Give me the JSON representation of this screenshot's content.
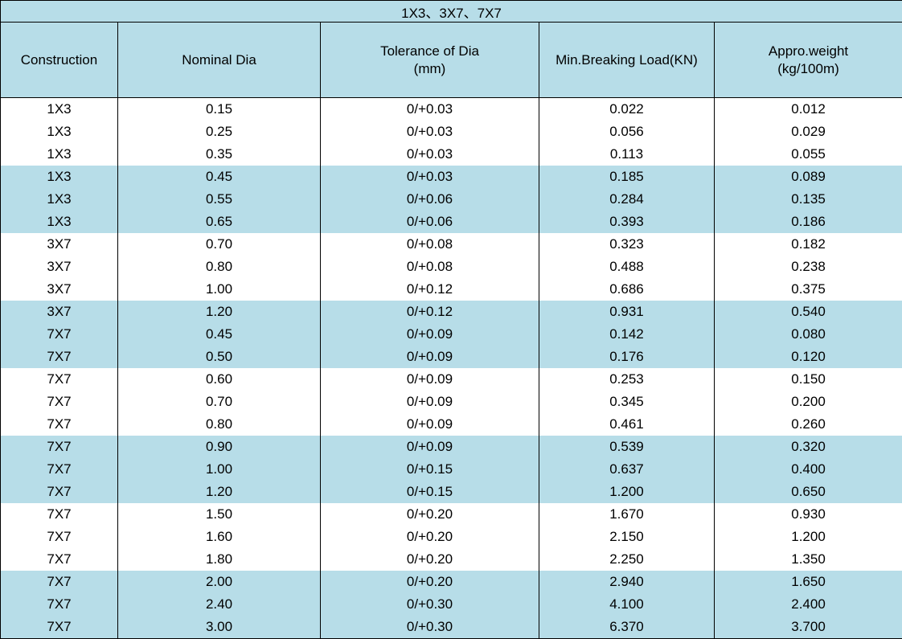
{
  "title": "1X3、3X7、7X7",
  "headers": [
    [
      "Construction"
    ],
    [
      "Nominal Dia"
    ],
    [
      "Tolerance of Dia",
      "(mm)"
    ],
    [
      "Min.Breaking Load(KN)"
    ],
    [
      "Appro.weight",
      "(kg/100m)"
    ]
  ],
  "rows": [
    [
      "1X3",
      "0.15",
      "0/+0.03",
      "0.022",
      "0.012"
    ],
    [
      "1X3",
      "0.25",
      "0/+0.03",
      "0.056",
      "0.029"
    ],
    [
      "1X3",
      "0.35",
      "0/+0.03",
      "0.113",
      "0.055"
    ],
    [
      "1X3",
      "0.45",
      "0/+0.03",
      "0.185",
      "0.089"
    ],
    [
      "1X3",
      "0.55",
      "0/+0.06",
      "0.284",
      "0.135"
    ],
    [
      "1X3",
      "0.65",
      "0/+0.06",
      "0.393",
      "0.186"
    ],
    [
      "3X7",
      "0.70",
      "0/+0.08",
      "0.323",
      "0.182"
    ],
    [
      "3X7",
      "0.80",
      "0/+0.08",
      "0.488",
      "0.238"
    ],
    [
      "3X7",
      "1.00",
      "0/+0.12",
      "0.686",
      "0.375"
    ],
    [
      "3X7",
      "1.20",
      "0/+0.12",
      "0.931",
      "0.540"
    ],
    [
      "7X7",
      "0.45",
      "0/+0.09",
      "0.142",
      "0.080"
    ],
    [
      "7X7",
      "0.50",
      "0/+0.09",
      "0.176",
      "0.120"
    ],
    [
      "7X7",
      "0.60",
      "0/+0.09",
      "0.253",
      "0.150"
    ],
    [
      "7X7",
      "0.70",
      "0/+0.09",
      "0.345",
      "0.200"
    ],
    [
      "7X7",
      "0.80",
      "0/+0.09",
      "0.461",
      "0.260"
    ],
    [
      "7X7",
      "0.90",
      "0/+0.09",
      "0.539",
      "0.320"
    ],
    [
      "7X7",
      "1.00",
      "0/+0.15",
      "0.637",
      "0.400"
    ],
    [
      "7X7",
      "1.20",
      "0/+0.15",
      "1.200",
      "0.650"
    ],
    [
      "7X7",
      "1.50",
      "0/+0.20",
      "1.670",
      "0.930"
    ],
    [
      "7X7",
      "1.60",
      "0/+0.20",
      "2.150",
      "1.200"
    ],
    [
      "7X7",
      "1.80",
      "0/+0.20",
      "2.250",
      "1.350"
    ],
    [
      "7X7",
      "2.00",
      "0/+0.20",
      "2.940",
      "1.650"
    ],
    [
      "7X7",
      "2.40",
      "0/+0.30",
      "4.100",
      "2.400"
    ],
    [
      "7X7",
      "3.00",
      "0/+0.30",
      "6.370",
      "3.700"
    ]
  ],
  "colors": {
    "band": "#b7dde8",
    "plain": "#ffffff",
    "border": "#000000"
  }
}
